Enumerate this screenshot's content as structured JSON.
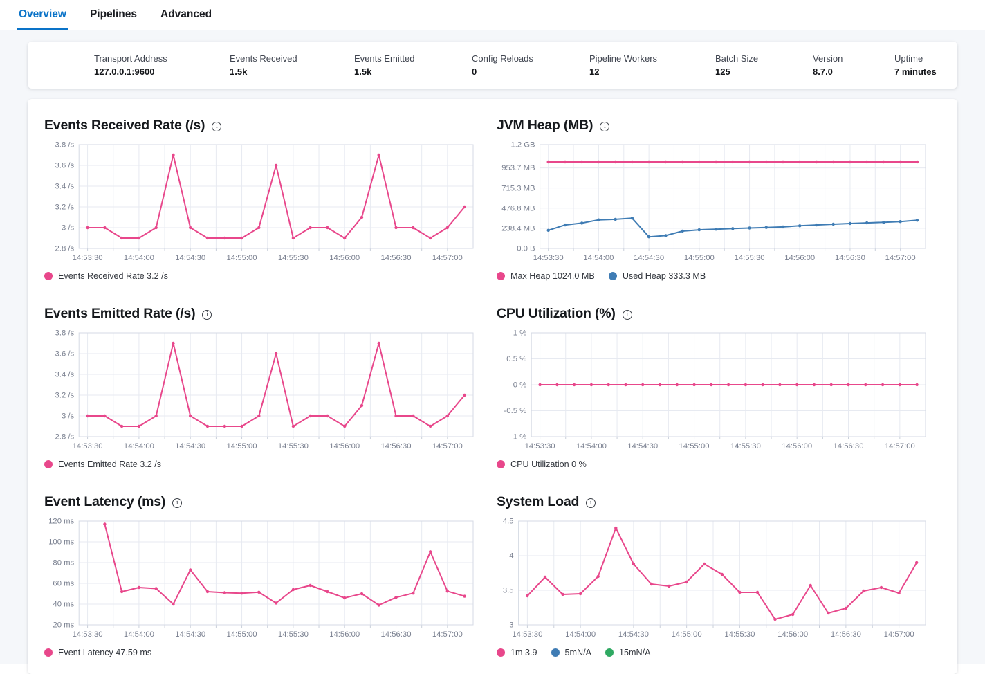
{
  "tabs": [
    {
      "label": "Overview",
      "active": true
    },
    {
      "label": "Pipelines",
      "active": false
    },
    {
      "label": "Advanced",
      "active": false
    }
  ],
  "stats": [
    {
      "label": "Transport Address",
      "value": "127.0.0.1:9600"
    },
    {
      "label": "Events Received",
      "value": "1.5k"
    },
    {
      "label": "Events Emitted",
      "value": "1.5k"
    },
    {
      "label": "Config Reloads",
      "value": "0"
    },
    {
      "label": "Pipeline Workers",
      "value": "12"
    },
    {
      "label": "Batch Size",
      "value": "125"
    },
    {
      "label": "Version",
      "value": "8.7.0"
    },
    {
      "label": "Uptime",
      "value": "7 minutes"
    }
  ],
  "icons": {
    "info": "i"
  },
  "colors": {
    "pink": "#e8478b",
    "blue": "#3f7cb4",
    "green": "#2fa962",
    "tab_active": "#0a73c8",
    "grid": "#e7eaf1",
    "plot_border": "#d5dae4",
    "axis_text": "#7a8090"
  },
  "chart_data": [
    {
      "type": "line",
      "title": "Events Received Rate (/s)",
      "x_domain": [
        "14:53:25",
        "14:57:15"
      ],
      "x_labels": [
        "14:53:30",
        "14:54:00",
        "14:54:30",
        "14:55:00",
        "14:55:30",
        "14:56:00",
        "14:56:30",
        "14:57:00"
      ],
      "y_ticks": {
        "values": [
          2.8,
          3,
          3.2,
          3.4,
          3.6,
          3.8
        ],
        "labels": [
          "2.8 /s",
          "3 /s",
          "3.2 /s",
          "3.4 /s",
          "3.6 /s",
          "3.8 /s"
        ]
      },
      "series": [
        {
          "name": "Events Received Rate",
          "color": "pink",
          "x": [
            "14:53:30",
            "14:53:40",
            "14:53:50",
            "14:54:00",
            "14:54:10",
            "14:54:20",
            "14:54:30",
            "14:54:40",
            "14:54:50",
            "14:55:00",
            "14:55:10",
            "14:55:20",
            "14:55:30",
            "14:55:40",
            "14:55:50",
            "14:56:00",
            "14:56:10",
            "14:56:20",
            "14:56:30",
            "14:56:40",
            "14:56:50",
            "14:57:00",
            "14:57:10"
          ],
          "values": [
            3,
            3,
            2.9,
            2.9,
            3,
            3.7,
            3,
            2.9,
            2.9,
            2.9,
            3,
            3.6,
            2.9,
            3,
            3,
            2.9,
            3.1,
            3.7,
            3,
            3,
            2.9,
            3,
            3.2
          ]
        }
      ],
      "legend": [
        {
          "color": "pink",
          "label": "Events Received Rate 3.2 /s"
        }
      ]
    },
    {
      "type": "line",
      "title": "JVM Heap (MB)",
      "x_domain": [
        "14:53:25",
        "14:57:15"
      ],
      "x_labels": [
        "14:53:30",
        "14:54:00",
        "14:54:30",
        "14:55:00",
        "14:55:30",
        "14:56:00",
        "14:56:30",
        "14:57:00"
      ],
      "y_ticks": {
        "values": [
          0,
          238.4,
          476.8,
          715.3,
          953.7,
          1228.8
        ],
        "labels": [
          "0.0 B",
          "238.4 MB",
          "476.8 MB",
          "715.3 MB",
          "953.7 MB",
          "1.2 GB"
        ]
      },
      "series": [
        {
          "name": "Max Heap",
          "color": "pink",
          "x": [
            "14:53:30",
            "14:53:40",
            "14:53:50",
            "14:54:00",
            "14:54:10",
            "14:54:20",
            "14:54:30",
            "14:54:40",
            "14:54:50",
            "14:55:00",
            "14:55:10",
            "14:55:20",
            "14:55:30",
            "14:55:40",
            "14:55:50",
            "14:56:00",
            "14:56:10",
            "14:56:20",
            "14:56:30",
            "14:56:40",
            "14:56:50",
            "14:57:00",
            "14:57:10"
          ],
          "values": [
            1024,
            1024,
            1024,
            1024,
            1024,
            1024,
            1024,
            1024,
            1024,
            1024,
            1024,
            1024,
            1024,
            1024,
            1024,
            1024,
            1024,
            1024,
            1024,
            1024,
            1024,
            1024,
            1024
          ]
        },
        {
          "name": "Used Heap",
          "color": "blue",
          "x": [
            "14:53:30",
            "14:53:40",
            "14:53:50",
            "14:54:00",
            "14:54:10",
            "14:54:20",
            "14:54:30",
            "14:54:40",
            "14:54:50",
            "14:55:00",
            "14:55:10",
            "14:55:20",
            "14:55:30",
            "14:55:40",
            "14:55:50",
            "14:56:00",
            "14:56:10",
            "14:56:20",
            "14:56:30",
            "14:56:40",
            "14:56:50",
            "14:57:00",
            "14:57:10"
          ],
          "values": [
            215,
            278,
            300,
            338,
            345,
            358,
            138,
            152,
            205,
            220,
            228,
            235,
            242,
            248,
            255,
            268,
            278,
            287,
            295,
            302,
            310,
            318,
            333.3
          ]
        }
      ],
      "legend": [
        {
          "color": "pink",
          "label": "Max Heap 1024.0 MB"
        },
        {
          "color": "blue",
          "label": "Used Heap 333.3 MB"
        }
      ]
    },
    {
      "type": "line",
      "title": "Events Emitted Rate (/s)",
      "x_domain": [
        "14:53:25",
        "14:57:15"
      ],
      "x_labels": [
        "14:53:30",
        "14:54:00",
        "14:54:30",
        "14:55:00",
        "14:55:30",
        "14:56:00",
        "14:56:30",
        "14:57:00"
      ],
      "y_ticks": {
        "values": [
          2.8,
          3,
          3.2,
          3.4,
          3.6,
          3.8
        ],
        "labels": [
          "2.8 /s",
          "3 /s",
          "3.2 /s",
          "3.4 /s",
          "3.6 /s",
          "3.8 /s"
        ]
      },
      "series": [
        {
          "name": "Events Emitted Rate",
          "color": "pink",
          "x": [
            "14:53:30",
            "14:53:40",
            "14:53:50",
            "14:54:00",
            "14:54:10",
            "14:54:20",
            "14:54:30",
            "14:54:40",
            "14:54:50",
            "14:55:00",
            "14:55:10",
            "14:55:20",
            "14:55:30",
            "14:55:40",
            "14:55:50",
            "14:56:00",
            "14:56:10",
            "14:56:20",
            "14:56:30",
            "14:56:40",
            "14:56:50",
            "14:57:00",
            "14:57:10"
          ],
          "values": [
            3,
            3,
            2.9,
            2.9,
            3,
            3.7,
            3,
            2.9,
            2.9,
            2.9,
            3,
            3.6,
            2.9,
            3,
            3,
            2.9,
            3.1,
            3.7,
            3,
            3,
            2.9,
            3,
            3.2
          ]
        }
      ],
      "legend": [
        {
          "color": "pink",
          "label": "Events Emitted Rate 3.2 /s"
        }
      ]
    },
    {
      "type": "line",
      "title": "CPU Utilization (%)",
      "x_domain": [
        "14:53:25",
        "14:57:15"
      ],
      "x_labels": [
        "14:53:30",
        "14:54:00",
        "14:54:30",
        "14:55:00",
        "14:55:30",
        "14:56:00",
        "14:56:30",
        "14:57:00"
      ],
      "y_ticks": {
        "values": [
          -1,
          -0.5,
          0,
          0.5,
          1
        ],
        "labels": [
          "-1 %",
          "-0.5 %",
          "0 %",
          "0.5 %",
          "1 %"
        ]
      },
      "series": [
        {
          "name": "CPU Utilization",
          "color": "pink",
          "x": [
            "14:53:30",
            "14:53:40",
            "14:53:50",
            "14:54:00",
            "14:54:10",
            "14:54:20",
            "14:54:30",
            "14:54:40",
            "14:54:50",
            "14:55:00",
            "14:55:10",
            "14:55:20",
            "14:55:30",
            "14:55:40",
            "14:55:50",
            "14:56:00",
            "14:56:10",
            "14:56:20",
            "14:56:30",
            "14:56:40",
            "14:56:50",
            "14:57:00",
            "14:57:10"
          ],
          "values": [
            0,
            0,
            0,
            0,
            0,
            0,
            0,
            0,
            0,
            0,
            0,
            0,
            0,
            0,
            0,
            0,
            0,
            0,
            0,
            0,
            0,
            0,
            0
          ]
        }
      ],
      "legend": [
        {
          "color": "pink",
          "label": "CPU Utilization 0 %"
        }
      ]
    },
    {
      "type": "line",
      "title": "Event Latency (ms)",
      "x_domain": [
        "14:53:25",
        "14:57:15"
      ],
      "x_labels": [
        "14:53:30",
        "14:54:00",
        "14:54:30",
        "14:55:00",
        "14:55:30",
        "14:56:00",
        "14:56:30",
        "14:57:00"
      ],
      "y_ticks": {
        "values": [
          20,
          40,
          60,
          80,
          100,
          120
        ],
        "labels": [
          "20 ms",
          "40 ms",
          "60 ms",
          "80 ms",
          "100 ms",
          "120 ms"
        ]
      },
      "series": [
        {
          "name": "Event Latency",
          "color": "pink",
          "x": [
            "14:53:40",
            "14:53:50",
            "14:54:00",
            "14:54:10",
            "14:54:20",
            "14:54:30",
            "14:54:40",
            "14:54:50",
            "14:55:00",
            "14:55:10",
            "14:55:20",
            "14:55:30",
            "14:55:40",
            "14:55:50",
            "14:56:00",
            "14:56:10",
            "14:56:20",
            "14:56:30",
            "14:56:40",
            "14:56:50",
            "14:57:00",
            "14:57:10"
          ],
          "values": [
            117,
            52,
            56,
            55,
            40,
            73,
            52,
            51,
            50.5,
            51.5,
            41,
            54,
            58,
            52,
            46,
            50,
            39,
            46.5,
            50.5,
            90.5,
            52.5,
            47.59
          ]
        }
      ],
      "legend": [
        {
          "color": "pink",
          "label": "Event Latency 47.59 ms"
        }
      ]
    },
    {
      "type": "line",
      "title": "System Load",
      "x_domain": [
        "14:53:25",
        "14:57:15"
      ],
      "x_labels": [
        "14:53:30",
        "14:54:00",
        "14:54:30",
        "14:55:00",
        "14:55:30",
        "14:56:00",
        "14:56:30",
        "14:57:00"
      ],
      "y_ticks": {
        "values": [
          3,
          3.5,
          4,
          4.5
        ],
        "labels": [
          "3",
          "3.5",
          "4",
          "4.5"
        ]
      },
      "series": [
        {
          "name": "1m",
          "color": "pink",
          "x": [
            "14:53:30",
            "14:53:40",
            "14:53:50",
            "14:54:00",
            "14:54:10",
            "14:54:20",
            "14:54:30",
            "14:54:40",
            "14:54:50",
            "14:55:00",
            "14:55:10",
            "14:55:20",
            "14:55:30",
            "14:55:40",
            "14:55:50",
            "14:56:00",
            "14:56:10",
            "14:56:20",
            "14:56:30",
            "14:56:40",
            "14:56:50",
            "14:57:00",
            "14:57:10"
          ],
          "values": [
            3.42,
            3.69,
            3.44,
            3.45,
            3.7,
            4.4,
            3.88,
            3.59,
            3.56,
            3.62,
            3.88,
            3.73,
            3.47,
            3.47,
            3.08,
            3.15,
            3.57,
            3.17,
            3.24,
            3.49,
            3.54,
            3.46,
            3.9
          ]
        }
      ],
      "legend": [
        {
          "color": "pink",
          "label": "1m 3.9"
        },
        {
          "color": "blue",
          "label": "5mN/A"
        },
        {
          "color": "green",
          "label": "15mN/A"
        }
      ]
    }
  ]
}
